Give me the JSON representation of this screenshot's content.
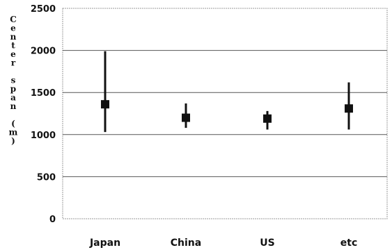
{
  "chart_data": {
    "type": "scatter",
    "subtype": "range-plot",
    "title": "",
    "xlabel": "",
    "ylabel": "Center span (m)",
    "categories": [
      "Japan",
      "China",
      "US",
      "etc"
    ],
    "series": [
      {
        "values": [
          1360,
          1200,
          1190,
          1310
        ],
        "min": [
          1030,
          1080,
          1060,
          1060
        ],
        "max": [
          1990,
          1370,
          1280,
          1620
        ]
      }
    ],
    "ylim": [
      0,
      2500
    ],
    "yticks": [
      0,
      500,
      1000,
      1500,
      2000,
      2500
    ],
    "grid": true,
    "legend": "none",
    "colors": {
      "marker": "#111111",
      "gridline": "#555555",
      "plot_border": "#999999"
    }
  }
}
